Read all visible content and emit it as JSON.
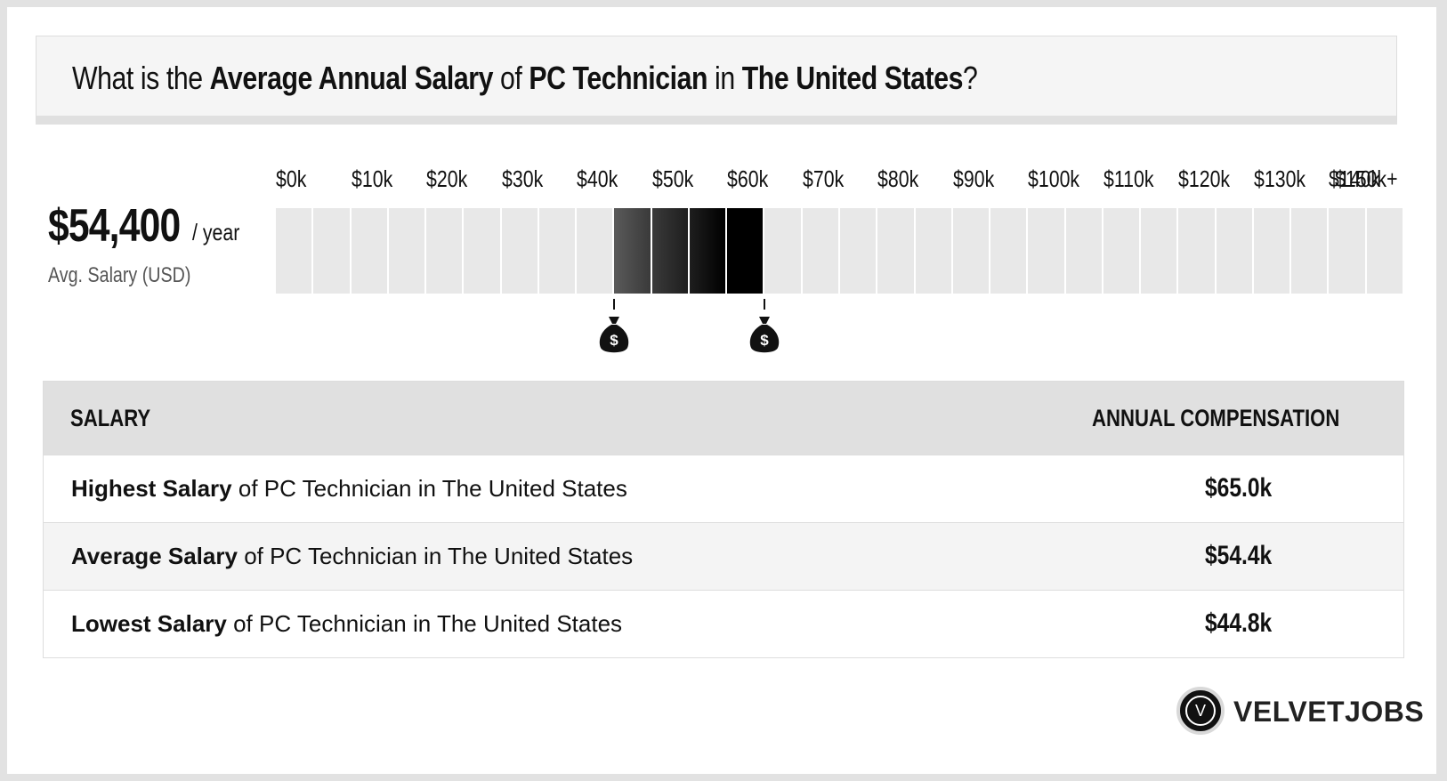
{
  "title": {
    "prefix": "What is the",
    "bold1": "Average Annual Salary",
    "mid1": "of",
    "bold2": "PC Technician",
    "mid2": "in",
    "bold3": "The United States",
    "suffix": "?"
  },
  "average": {
    "amount": "$54,400",
    "per": "/ year",
    "label": "Avg. Salary (USD)"
  },
  "chart_data": {
    "type": "bar",
    "tick_labels": [
      "$0k",
      "$10k",
      "$20k",
      "$30k",
      "$40k",
      "$50k",
      "$60k",
      "$70k",
      "$80k",
      "$90k",
      "$100k",
      "$110k",
      "$120k",
      "$130k",
      "$140k",
      "$150k+"
    ],
    "range_min": 0,
    "range_max": 150,
    "segment_step": 5,
    "highlight_from": 45,
    "highlight_to": 65,
    "highlight_colors": [
      "#5a5a5a",
      "#3a3a3a",
      "#1e1e1e",
      "#000000"
    ],
    "base_color": "#e8e8e8",
    "markers": [
      45,
      65
    ],
    "markers_unit": "thousand USD"
  },
  "table": {
    "col1": "SALARY",
    "col2": "ANNUAL COMPENSATION",
    "rows": [
      {
        "bold": "Highest Salary",
        "rest": "of PC Technician in The United States",
        "value": "$65.0k"
      },
      {
        "bold": "Average Salary",
        "rest": "of PC Technician in The United States",
        "value": "$54.4k"
      },
      {
        "bold": "Lowest Salary",
        "rest": "of PC Technician in The United States",
        "value": "$44.8k"
      }
    ]
  },
  "logo": {
    "letter": "V",
    "name": "VELVETJOBS"
  },
  "marker_symbol": "$"
}
